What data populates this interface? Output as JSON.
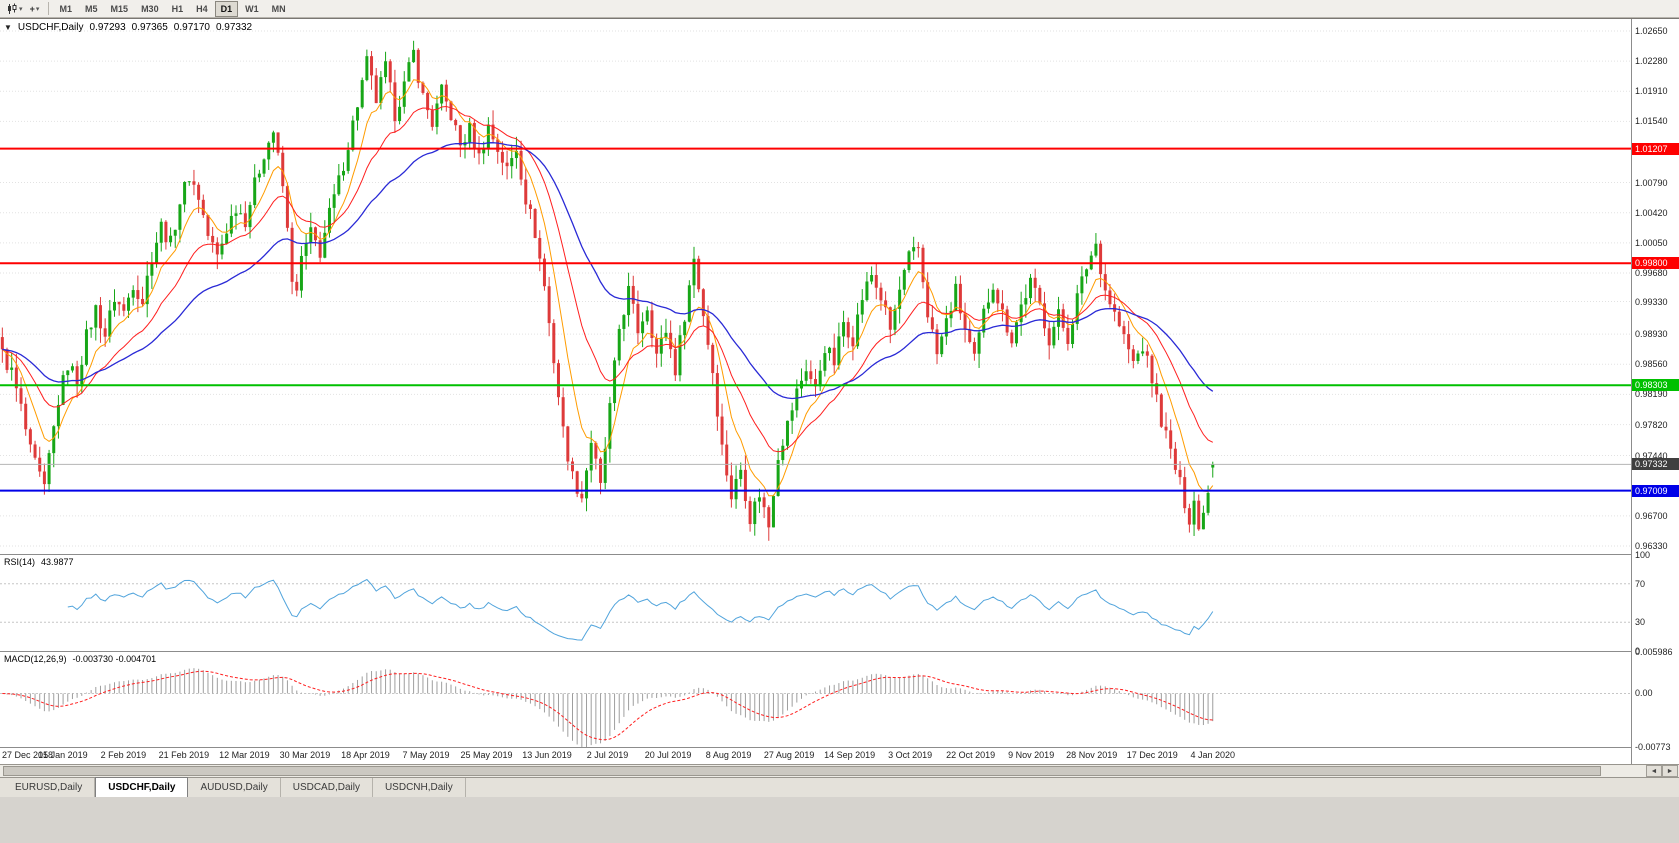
{
  "icons": {
    "expander": "▼",
    "caret": "▾",
    "crosshair": "+",
    "scroll_left": "◄",
    "scroll_right": "►"
  },
  "toolbar": {
    "timeframes": [
      "M1",
      "M5",
      "M15",
      "M30",
      "H1",
      "H4",
      "D1",
      "W1",
      "MN"
    ],
    "active_timeframe": "D1"
  },
  "chart_header": {
    "symbol_label": "USDCHF,Daily",
    "open": "0.97293",
    "high": "0.97365",
    "low": "0.97170",
    "close": "0.97332"
  },
  "indicators": {
    "rsi_label": "RSI(14)",
    "rsi_value": "43.9877",
    "rsi_ticks": [
      "100",
      "70",
      "30",
      "0"
    ],
    "macd_label": "MACD(12,26,9)",
    "macd_values": "-0.003730 -0.004701",
    "macd_ticks": [
      "0.005986",
      "0.00",
      "-0.00773"
    ]
  },
  "tabs": [
    {
      "label": "EURUSD,Daily",
      "active": false
    },
    {
      "label": "USDCHF,Daily",
      "active": true
    },
    {
      "label": "AUDUSD,Daily",
      "active": false
    },
    {
      "label": "USDCAD,Daily",
      "active": false
    },
    {
      "label": "USDCNH,Daily",
      "active": false
    }
  ],
  "chart_data": {
    "type": "candlestick",
    "symbol": "USDCHF",
    "timeframe": "Daily",
    "current_ohlc": {
      "open": 0.97293,
      "high": 0.97365,
      "low": 0.9717,
      "close": 0.97332
    },
    "y_range": [
      0.96232,
      1.02797
    ],
    "y_ticks": [
      "1.02650",
      "1.02280",
      "1.01910",
      "1.01540",
      "1.00790",
      "1.00420",
      "1.00050",
      "0.99680",
      "0.99330",
      "0.98930",
      "0.98560",
      "0.98190",
      "0.97820",
      "0.97440",
      "0.96700",
      "0.96330"
    ],
    "x_labels": [
      "27 Dec 2018",
      "15 Jan 2019",
      "2 Feb 2019",
      "21 Feb 2019",
      "12 Mar 2019",
      "30 Mar 2019",
      "18 Apr 2019",
      "7 May 2019",
      "25 May 2019",
      "13 Jun 2019",
      "2 Jul 2019",
      "20 Jul 2019",
      "8 Aug 2019",
      "27 Aug 2019",
      "14 Sep 2019",
      "3 Oct 2019",
      "22 Oct 2019",
      "9 Nov 2019",
      "28 Nov 2019",
      "17 Dec 2019",
      "4 Jan 2020"
    ],
    "num_candles": 260,
    "plot_fraction": 0.745,
    "price_path": [
      [
        0,
        0.9868
      ],
      [
        2,
        0.9846
      ],
      [
        4,
        0.9802
      ],
      [
        6,
        0.9748
      ],
      [
        8,
        0.9718
      ],
      [
        9,
        0.97
      ],
      [
        10,
        0.9742
      ],
      [
        12,
        0.9812
      ],
      [
        14,
        0.9856
      ],
      [
        16,
        0.9838
      ],
      [
        18,
        0.989
      ],
      [
        20,
        0.9924
      ],
      [
        22,
        0.9892
      ],
      [
        24,
        0.9938
      ],
      [
        26,
        0.992
      ],
      [
        28,
        0.9956
      ],
      [
        30,
        0.9934
      ],
      [
        32,
        0.999
      ],
      [
        34,
        1.0026
      ],
      [
        36,
        1.0004
      ],
      [
        38,
        1.0056
      ],
      [
        40,
        1.0088
      ],
      [
        42,
        1.0062
      ],
      [
        44,
        1.0014
      ],
      [
        46,
        0.9988
      ],
      [
        48,
        1.0022
      ],
      [
        50,
        1.005
      ],
      [
        52,
        1.0034
      ],
      [
        54,
        1.0076
      ],
      [
        56,
        1.0116
      ],
      [
        58,
        1.0142
      ],
      [
        60,
        1.0074
      ],
      [
        62,
        0.9964
      ],
      [
        63,
        0.994
      ],
      [
        64,
        0.9986
      ],
      [
        66,
        1.0016
      ],
      [
        68,
        0.9994
      ],
      [
        70,
        1.004
      ],
      [
        72,
        1.008
      ],
      [
        74,
        1.0126
      ],
      [
        76,
        1.0176
      ],
      [
        78,
        1.0226
      ],
      [
        80,
        1.018
      ],
      [
        82,
        1.022
      ],
      [
        84,
        1.0164
      ],
      [
        86,
        1.0198
      ],
      [
        88,
        1.0238
      ],
      [
        90,
        1.0184
      ],
      [
        92,
        1.0152
      ],
      [
        94,
        1.019
      ],
      [
        96,
        1.0162
      ],
      [
        98,
        1.0124
      ],
      [
        100,
        1.0144
      ],
      [
        102,
        1.011
      ],
      [
        104,
        1.0148
      ],
      [
        106,
        1.012
      ],
      [
        108,
        1.0094
      ],
      [
        110,
        1.0122
      ],
      [
        112,
        1.006
      ],
      [
        114,
        1.0018
      ],
      [
        116,
        0.9952
      ],
      [
        117,
        0.9906
      ],
      [
        118,
        0.9862
      ],
      [
        119,
        0.9818
      ],
      [
        120,
        0.9774
      ],
      [
        122,
        0.9718
      ],
      [
        124,
        0.9694
      ],
      [
        126,
        0.9762
      ],
      [
        128,
        0.9704
      ],
      [
        130,
        0.9802
      ],
      [
        132,
        0.99
      ],
      [
        134,
        0.9946
      ],
      [
        136,
        0.9898
      ],
      [
        138,
        0.9928
      ],
      [
        140,
        0.9868
      ],
      [
        142,
        0.9898
      ],
      [
        144,
        0.985
      ],
      [
        146,
        0.9918
      ],
      [
        148,
        0.9986
      ],
      [
        150,
        0.9918
      ],
      [
        152,
        0.9848
      ],
      [
        154,
        0.9754
      ],
      [
        156,
        0.9694
      ],
      [
        158,
        0.9728
      ],
      [
        160,
        0.9668
      ],
      [
        162,
        0.9698
      ],
      [
        164,
        0.9658
      ],
      [
        166,
        0.9746
      ],
      [
        168,
        0.9782
      ],
      [
        170,
        0.9822
      ],
      [
        172,
        0.9852
      ],
      [
        174,
        0.9824
      ],
      [
        176,
        0.9878
      ],
      [
        178,
        0.9858
      ],
      [
        180,
        0.9908
      ],
      [
        182,
        0.9888
      ],
      [
        184,
        0.9938
      ],
      [
        186,
        0.9966
      ],
      [
        188,
        0.9938
      ],
      [
        190,
        0.9898
      ],
      [
        192,
        0.9946
      ],
      [
        194,
        0.9986
      ],
      [
        196,
        0.9998
      ],
      [
        198,
        0.992
      ],
      [
        200,
        0.9868
      ],
      [
        202,
        0.9908
      ],
      [
        204,
        0.9946
      ],
      [
        206,
        0.9898
      ],
      [
        208,
        0.986
      ],
      [
        210,
        0.9918
      ],
      [
        212,
        0.9956
      ],
      [
        214,
        0.9918
      ],
      [
        216,
        0.9888
      ],
      [
        218,
        0.9928
      ],
      [
        220,
        0.9956
      ],
      [
        222,
        0.9928
      ],
      [
        224,
        0.9888
      ],
      [
        226,
        0.9916
      ],
      [
        228,
        0.9888
      ],
      [
        230,
        0.9938
      ],
      [
        232,
        0.9976
      ],
      [
        234,
        1.0004
      ],
      [
        236,
        0.9948
      ],
      [
        238,
        0.9918
      ],
      [
        240,
        0.9888
      ],
      [
        242,
        0.9858
      ],
      [
        244,
        0.9878
      ],
      [
        246,
        0.9838
      ],
      [
        248,
        0.9788
      ],
      [
        250,
        0.9748
      ],
      [
        252,
        0.9708
      ],
      [
        254,
        0.9668
      ],
      [
        255,
        0.969
      ],
      [
        256,
        0.9652
      ],
      [
        257,
        0.9682
      ],
      [
        258,
        0.97
      ],
      [
        259,
        0.97332
      ]
    ],
    "hlines": [
      {
        "price": 1.01207,
        "label": "1.01207",
        "color": "#FE0000",
        "width": 2
      },
      {
        "price": 0.998,
        "label": "0.99800",
        "color": "#FE0000",
        "width": 2
      },
      {
        "price": 0.98303,
        "label": "0.98303",
        "color": "#00C000",
        "width": 2
      },
      {
        "price": 0.97009,
        "label": "0.97009",
        "color": "#0000E8",
        "width": 2
      }
    ],
    "current_price": {
      "value": 0.97332,
      "label": "0.97332"
    },
    "moving_averages": [
      {
        "period": 8,
        "color": "#FF9C00"
      },
      {
        "period": 20,
        "color": "#FF1F1F"
      },
      {
        "period": 45,
        "color": "#2A2AD6"
      }
    ],
    "rsi": {
      "period": 14,
      "range": [
        0,
        100
      ],
      "levels": [
        70,
        30
      ],
      "color": "#51A4DC"
    },
    "macd": {
      "fast": 12,
      "slow": 26,
      "signal": 9,
      "range": [
        -0.00773,
        0.005986
      ],
      "histogram_color": "#9E9E9E",
      "signal_color": "#FF1F1F"
    },
    "colors": {
      "up": "#17A617",
      "down": "#DE3A3A",
      "grid": "#E2E2E2",
      "level_dotted": "#C6C6C6",
      "current_line": "#B4B4B4",
      "current_badge": "#3F3F3F"
    }
  }
}
